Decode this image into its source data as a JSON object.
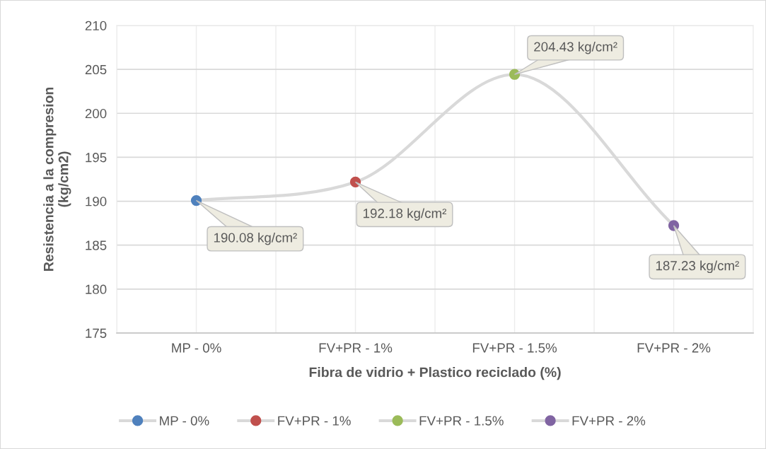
{
  "chart_data": {
    "type": "line",
    "xlabel": "Fibra de vidrio + Plastico reciclado (%)",
    "ylabel": "Resistencia a la compresion\n(kg/cm2)",
    "categories": [
      "MP - 0%",
      "FV+PR - 1%",
      "FV+PR - 1.5%",
      "FV+PR - 2%"
    ],
    "series": [
      {
        "color": "#d9d9d9",
        "values": [
          190.08,
          192.18,
          204.43,
          187.23
        ]
      },
      {
        "type": "scatter",
        "name": "MP - 0%",
        "color": "#4f81bd",
        "values": [
          190.08,
          null,
          null,
          null
        ],
        "value_labels": [
          "190.08 kg/cm²",
          null,
          null,
          null
        ]
      },
      {
        "type": "scatter",
        "name": "FV+PR - 1%",
        "color": "#c0504d",
        "values": [
          null,
          192.18,
          null,
          null
        ],
        "value_labels": [
          null,
          "192.18 kg/cm²",
          null,
          null
        ]
      },
      {
        "type": "scatter",
        "name": "FV+PR - 1.5%",
        "color": "#9bbb59",
        "values": [
          null,
          null,
          204.43,
          null
        ],
        "value_labels": [
          null,
          null,
          "204.43 kg/cm²",
          null
        ]
      },
      {
        "type": "scatter",
        "name": "FV+PR - 2%",
        "color": "#8064a2",
        "values": [
          null,
          null,
          null,
          187.23
        ],
        "value_labels": [
          null,
          null,
          null,
          "187.23 kg/cm²"
        ]
      }
    ],
    "ylim": [
      175,
      210
    ],
    "yticks": [
      175,
      180,
      185,
      190,
      195,
      200,
      205,
      210
    ],
    "grid": true,
    "legend": "bottom",
    "line_style": "solid"
  }
}
